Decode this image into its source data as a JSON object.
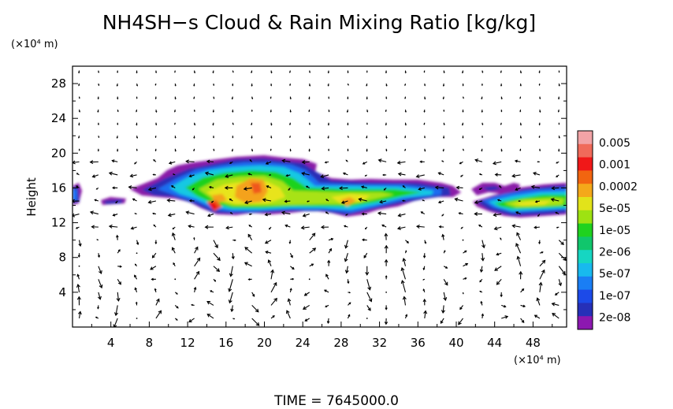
{
  "chart_data": {
    "type": "heatmap",
    "title": "NH4SH−s Cloud & Rain Mixing Ratio [kg/kg]",
    "xlabel": "",
    "ylabel": "Height",
    "x_unit": "(×10⁴ m)",
    "y_unit": "(×10⁴ m)",
    "xlim": [
      0,
      51.5
    ],
    "ylim": [
      0,
      30
    ],
    "xticks": [
      4,
      8,
      12,
      16,
      20,
      24,
      28,
      32,
      36,
      40,
      44,
      48
    ],
    "yticks": [
      4,
      8,
      12,
      16,
      20,
      24,
      28
    ],
    "colorbar": {
      "labels": [
        "0.005",
        "0.001",
        "0.0002",
        "5e-05",
        "1e-05",
        "2e-06",
        "5e-07",
        "1e-07",
        "2e-08"
      ],
      "colors": [
        "#f2a3a6",
        "#f06a5a",
        "#f01818",
        "#f26510",
        "#f4a81a",
        "#e2e31a",
        "#9ee212",
        "#1fd21f",
        "#10c66c",
        "#16d6c2",
        "#18b9ee",
        "#1a7ef4",
        "#1c4ae8",
        "#2630b8",
        "#8c18b0"
      ]
    },
    "cloud_layer": {
      "base_height": 13.2,
      "top_height": 19.3,
      "core_x_range": [
        12,
        23
      ],
      "core_value": "0.0002"
    },
    "vector_field": "wind arrows",
    "footer": "TIME  =  7645000.0"
  }
}
